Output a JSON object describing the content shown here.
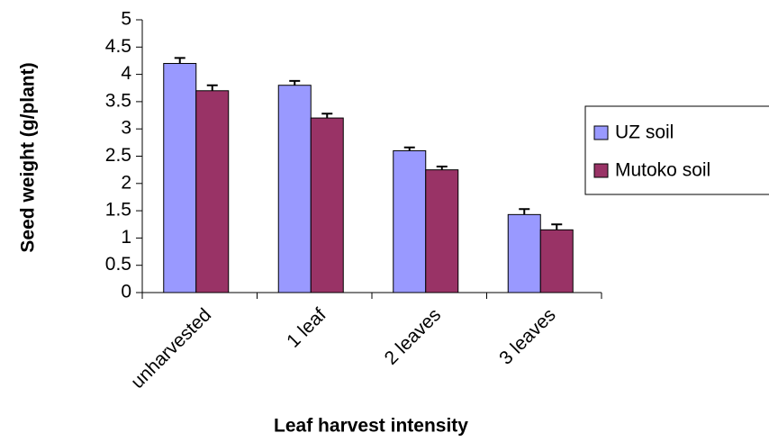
{
  "chart_data": {
    "type": "bar",
    "xlabel": "Leaf harvest intensity",
    "ylabel": "Seed weight (g/plant)",
    "categories": [
      "unharvested",
      "1 leaf",
      "2 leaves",
      "3 leaves"
    ],
    "series": [
      {
        "name": "UZ soil",
        "color": "#9999ff",
        "values": [
          4.2,
          3.8,
          2.6,
          1.43
        ],
        "errors": [
          0.1,
          0.08,
          0.06,
          0.1
        ]
      },
      {
        "name": "Mutoko soil",
        "color": "#993366",
        "values": [
          3.7,
          3.2,
          2.25,
          1.15
        ],
        "errors": [
          0.1,
          0.08,
          0.06,
          0.1
        ]
      }
    ],
    "ylim": [
      0,
      5
    ],
    "yticks": [
      0,
      0.5,
      1,
      1.5,
      2,
      2.5,
      3,
      3.5,
      4,
      4.5,
      5
    ],
    "grid": false,
    "legend": "right"
  }
}
